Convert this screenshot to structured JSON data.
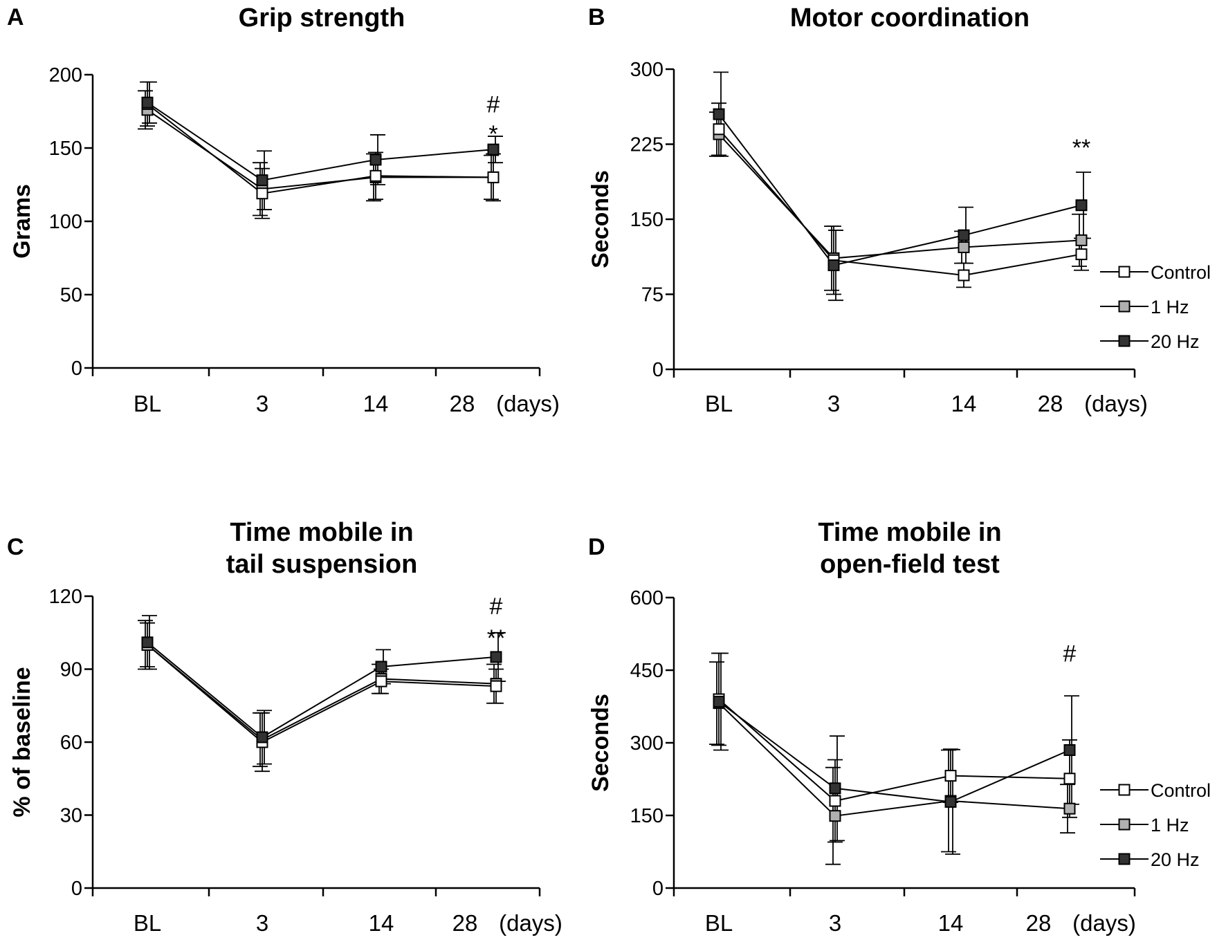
{
  "legend": {
    "labels": [
      "Control",
      "1 Hz",
      "20 Hz"
    ],
    "colors": {
      "Control": "#ffffff",
      "1 Hz": "#b0b0b0",
      "20 Hz": "#333333"
    }
  },
  "chart_data": [
    {
      "panel": "A",
      "type": "line",
      "title": "Grip strength",
      "ylabel": "Grams",
      "xlabel": "(days)",
      "categories": [
        "BL",
        "3",
        "14",
        "28"
      ],
      "ylim": [
        0,
        200
      ],
      "yticks": [
        0,
        50,
        100,
        150,
        200
      ],
      "legend": false,
      "series": [
        {
          "name": "Control",
          "values": [
            180,
            119,
            131,
            130
          ],
          "errors": [
            15,
            17,
            16,
            16
          ]
        },
        {
          "name": "1 Hz",
          "values": [
            176,
            122,
            130,
            130
          ],
          "errors": [
            13,
            18,
            16,
            15
          ]
        },
        {
          "name": "20 Hz",
          "values": [
            181,
            128,
            142,
            149
          ],
          "errors": [
            14,
            20,
            17,
            9
          ]
        }
      ],
      "annotations": [
        {
          "category": "28",
          "value": 180,
          "text": "#"
        },
        {
          "category": "28",
          "value": 160,
          "text": "*"
        }
      ]
    },
    {
      "panel": "B",
      "type": "line",
      "title": "Motor coordination",
      "ylabel": "Seconds",
      "xlabel": "(days)",
      "categories": [
        "BL",
        "3",
        "14",
        "28"
      ],
      "ylim": [
        0,
        300
      ],
      "yticks": [
        0,
        75,
        150,
        225,
        300
      ],
      "legend": true,
      "series": [
        {
          "name": "Control",
          "values": [
            240,
            109,
            94,
            115
          ],
          "errors": [
            26,
            34,
            12,
            16
          ]
        },
        {
          "name": "1 Hz",
          "values": [
            235,
            111,
            122,
            129
          ],
          "errors": [
            22,
            32,
            16,
            26
          ]
        },
        {
          "name": "20 Hz",
          "values": [
            255,
            104,
            134,
            164
          ],
          "errors": [
            42,
            35,
            28,
            33
          ]
        }
      ],
      "annotations": [
        {
          "category": "28",
          "value": 222,
          "text": "**"
        }
      ]
    },
    {
      "panel": "C",
      "type": "line",
      "title": "Time mobile in\ntail suspension",
      "ylabel": "% of baseline",
      "xlabel": "(days)",
      "categories": [
        "BL",
        "3",
        "14",
        "28"
      ],
      "ylim": [
        0,
        120
      ],
      "yticks": [
        0,
        30,
        60,
        90,
        120
      ],
      "legend": false,
      "series": [
        {
          "name": "Control",
          "values": [
            100,
            60,
            85,
            83
          ],
          "errors": [
            9,
            12,
            5,
            7
          ]
        },
        {
          "name": "1 Hz",
          "values": [
            100,
            61,
            86,
            84
          ],
          "errors": [
            10,
            11,
            6,
            8
          ]
        },
        {
          "name": "20 Hz",
          "values": [
            101,
            62,
            91,
            95
          ],
          "errors": [
            11,
            11,
            7,
            10
          ]
        }
      ],
      "annotations": [
        {
          "category": "28",
          "value": 116,
          "text": "#"
        },
        {
          "category": "28",
          "value": 103,
          "text": "**"
        }
      ]
    },
    {
      "panel": "D",
      "type": "line",
      "title": "Time mobile in\nopen-field test",
      "ylabel": "Seconds",
      "xlabel": "(days)",
      "categories": [
        "BL",
        "3",
        "14",
        "28"
      ],
      "ylim": [
        0,
        600
      ],
      "yticks": [
        0,
        150,
        300,
        450,
        600
      ],
      "legend": true,
      "series": [
        {
          "name": "Control",
          "values": [
            390,
            180,
            232,
            226
          ],
          "errors": [
            95,
            85,
            55,
            80
          ]
        },
        {
          "name": "1 Hz",
          "values": [
            382,
            149,
            180,
            164
          ],
          "errors": [
            85,
            100,
            105,
            50
          ]
        },
        {
          "name": "20 Hz",
          "values": [
            385,
            206,
            178,
            285
          ],
          "errors": [
            100,
            108,
            108,
            112
          ]
        }
      ],
      "annotations": [
        {
          "category": "28",
          "value": 485,
          "text": "#"
        }
      ]
    }
  ]
}
